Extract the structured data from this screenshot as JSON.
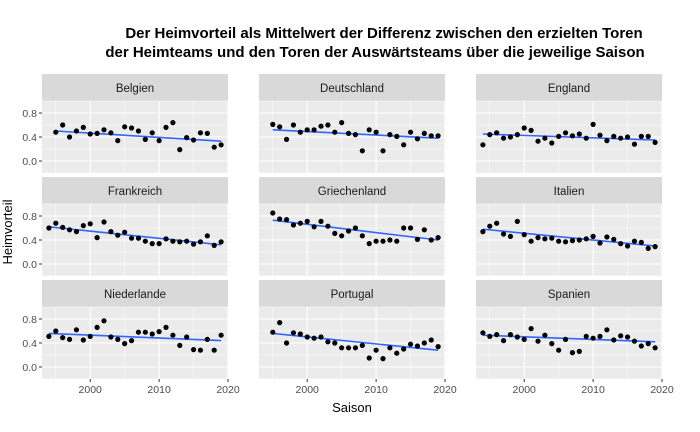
{
  "chart_data": {
    "type": "scatter",
    "title_lines": [
      "Der Heimvorteil als Mittelwert der Differenz zwischen den erzielten Toren",
      "der Heimteams und den Toren der Auswärtsteams über die jeweilige Saison"
    ],
    "xlabel": "Saison",
    "ylabel": "Heimvorteil",
    "xlim": [
      1993,
      2020
    ],
    "ylim": [
      -0.2,
      1.0
    ],
    "x_ticks": [
      2000,
      2010,
      2020
    ],
    "y_ticks": [
      0.0,
      0.4,
      0.8
    ],
    "y_tick_labels": [
      "0.0",
      "0.4",
      "0.8"
    ],
    "grid": true,
    "layout": "facet-grid 3x3",
    "trend_color": "#3366FF",
    "point_color": "#000000",
    "panel_background": "#EBEBEB",
    "strip_background": "#D9D9D9",
    "facets": [
      {
        "name": "Belgien",
        "x": [
          1995,
          1996,
          1997,
          1998,
          1999,
          2000,
          2001,
          2002,
          2003,
          2004,
          2005,
          2006,
          2007,
          2008,
          2009,
          2010,
          2011,
          2012,
          2013,
          2014,
          2015,
          2016,
          2017,
          2018,
          2019
        ],
        "y": [
          0.48,
          0.6,
          0.4,
          0.5,
          0.56,
          0.45,
          0.46,
          0.52,
          0.47,
          0.34,
          0.57,
          0.55,
          0.5,
          0.36,
          0.47,
          0.34,
          0.56,
          0.64,
          0.19,
          0.39,
          0.35,
          0.47,
          0.46,
          0.23,
          0.27
        ],
        "trend": [
          0.5,
          0.33
        ]
      },
      {
        "name": "Deutschland",
        "x": [
          1995,
          1996,
          1997,
          1998,
          1999,
          2000,
          2001,
          2002,
          2003,
          2004,
          2005,
          2006,
          2007,
          2008,
          2009,
          2010,
          2011,
          2012,
          2013,
          2014,
          2015,
          2016,
          2017,
          2018,
          2019
        ],
        "y": [
          0.61,
          0.57,
          0.36,
          0.6,
          0.48,
          0.52,
          0.52,
          0.58,
          0.6,
          0.48,
          0.64,
          0.46,
          0.44,
          0.17,
          0.52,
          0.48,
          0.17,
          0.44,
          0.41,
          0.27,
          0.48,
          0.37,
          0.46,
          0.42,
          0.42
        ],
        "trend": [
          0.52,
          0.38
        ]
      },
      {
        "name": "England",
        "x": [
          1994,
          1995,
          1996,
          1997,
          1998,
          1999,
          2000,
          2001,
          2002,
          2003,
          2004,
          2005,
          2006,
          2007,
          2008,
          2009,
          2010,
          2011,
          2012,
          2013,
          2014,
          2015,
          2016,
          2017,
          2018,
          2019
        ],
        "y": [
          0.27,
          0.44,
          0.47,
          0.38,
          0.4,
          0.44,
          0.55,
          0.51,
          0.33,
          0.38,
          0.3,
          0.41,
          0.47,
          0.42,
          0.45,
          0.38,
          0.61,
          0.43,
          0.34,
          0.41,
          0.38,
          0.4,
          0.28,
          0.41,
          0.41,
          0.31
        ],
        "trend": [
          0.45,
          0.35
        ]
      },
      {
        "name": "Frankreich",
        "x": [
          1994,
          1995,
          1996,
          1997,
          1998,
          1999,
          2000,
          2001,
          2002,
          2003,
          2004,
          2005,
          2006,
          2007,
          2008,
          2009,
          2010,
          2011,
          2012,
          2013,
          2014,
          2015,
          2016,
          2017,
          2018,
          2019
        ],
        "y": [
          0.6,
          0.68,
          0.61,
          0.57,
          0.54,
          0.64,
          0.67,
          0.44,
          0.7,
          0.54,
          0.48,
          0.53,
          0.43,
          0.43,
          0.38,
          0.34,
          0.34,
          0.42,
          0.38,
          0.37,
          0.38,
          0.33,
          0.37,
          0.47,
          0.31,
          0.37
        ],
        "trend": [
          0.62,
          0.32
        ]
      },
      {
        "name": "Griechenland",
        "x": [
          1995,
          1996,
          1997,
          1998,
          1999,
          2000,
          2001,
          2002,
          2003,
          2004,
          2005,
          2006,
          2007,
          2008,
          2009,
          2010,
          2011,
          2012,
          2013,
          2014,
          2015,
          2016,
          2017,
          2018,
          2019
        ],
        "y": [
          0.85,
          0.75,
          0.74,
          0.65,
          0.68,
          0.71,
          0.62,
          0.71,
          0.63,
          0.51,
          0.47,
          0.55,
          0.6,
          0.47,
          0.34,
          0.38,
          0.38,
          0.4,
          0.38,
          0.6,
          0.6,
          0.41,
          0.57,
          0.4,
          0.44
        ],
        "trend": [
          0.73,
          0.4
        ]
      },
      {
        "name": "Italien",
        "x": [
          1994,
          1995,
          1996,
          1997,
          1998,
          1999,
          2000,
          2001,
          2002,
          2003,
          2004,
          2005,
          2006,
          2007,
          2008,
          2009,
          2010,
          2011,
          2012,
          2013,
          2014,
          2015,
          2016,
          2017,
          2018,
          2019
        ],
        "y": [
          0.54,
          0.63,
          0.68,
          0.5,
          0.46,
          0.71,
          0.49,
          0.38,
          0.44,
          0.42,
          0.43,
          0.38,
          0.37,
          0.39,
          0.4,
          0.42,
          0.46,
          0.35,
          0.45,
          0.41,
          0.34,
          0.3,
          0.38,
          0.36,
          0.26,
          0.29
        ],
        "trend": [
          0.58,
          0.3
        ]
      },
      {
        "name": "Niederlande",
        "x": [
          1994,
          1995,
          1996,
          1997,
          1998,
          1999,
          2000,
          2001,
          2002,
          2003,
          2004,
          2005,
          2006,
          2007,
          2008,
          2009,
          2010,
          2011,
          2012,
          2013,
          2014,
          2015,
          2016,
          2017,
          2018,
          2019
        ],
        "y": [
          0.51,
          0.6,
          0.49,
          0.46,
          0.62,
          0.45,
          0.51,
          0.66,
          0.77,
          0.5,
          0.46,
          0.39,
          0.44,
          0.58,
          0.58,
          0.55,
          0.59,
          0.66,
          0.53,
          0.36,
          0.5,
          0.29,
          0.28,
          0.46,
          0.28,
          0.53
        ],
        "trend": [
          0.56,
          0.44
        ]
      },
      {
        "name": "Portugal",
        "x": [
          1995,
          1996,
          1997,
          1998,
          1999,
          2000,
          2001,
          2002,
          2003,
          2004,
          2005,
          2006,
          2007,
          2008,
          2009,
          2010,
          2011,
          2012,
          2013,
          2014,
          2015,
          2016,
          2017,
          2018,
          2019
        ],
        "y": [
          0.58,
          0.74,
          0.4,
          0.57,
          0.55,
          0.5,
          0.48,
          0.5,
          0.42,
          0.4,
          0.32,
          0.32,
          0.32,
          0.36,
          0.15,
          0.28,
          0.14,
          0.32,
          0.23,
          0.3,
          0.38,
          0.35,
          0.4,
          0.45,
          0.34
        ],
        "trend": [
          0.56,
          0.28
        ]
      },
      {
        "name": "Spanien",
        "x": [
          1994,
          1995,
          1996,
          1997,
          1998,
          1999,
          2000,
          2001,
          2002,
          2003,
          2004,
          2005,
          2006,
          2007,
          2008,
          2009,
          2010,
          2011,
          2012,
          2013,
          2014,
          2015,
          2016,
          2017,
          2018,
          2019
        ],
        "y": [
          0.57,
          0.51,
          0.54,
          0.44,
          0.54,
          0.5,
          0.46,
          0.64,
          0.43,
          0.53,
          0.39,
          0.28,
          0.46,
          0.24,
          0.26,
          0.51,
          0.48,
          0.51,
          0.62,
          0.45,
          0.52,
          0.5,
          0.43,
          0.35,
          0.39,
          0.32
        ],
        "trend": [
          0.53,
          0.42
        ]
      }
    ]
  }
}
